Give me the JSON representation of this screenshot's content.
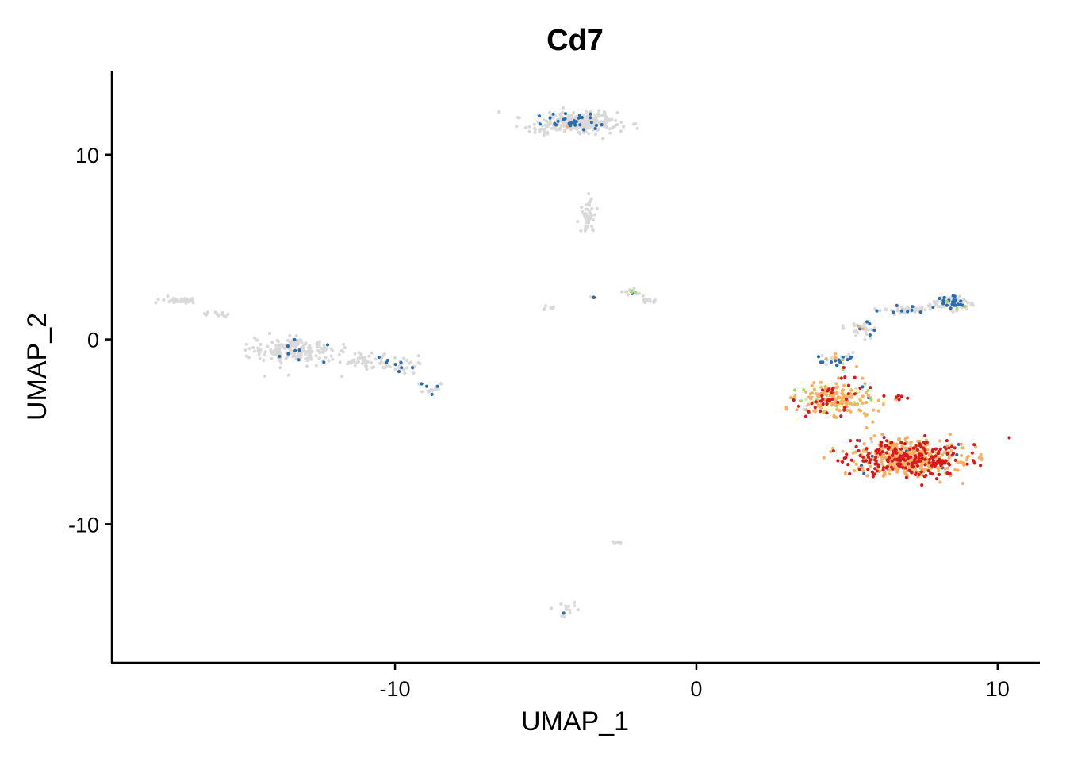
{
  "chart_data": {
    "type": "scatter",
    "title": "Cd7",
    "xlabel": "UMAP_1",
    "ylabel": "UMAP_2",
    "xlim": [
      -19.4,
      11.4
    ],
    "ylim": [
      -17.5,
      14.5
    ],
    "xticks": [
      -10,
      0,
      10
    ],
    "yticks": [
      -10,
      0,
      10
    ],
    "xtick_labels": [
      "-10",
      "0",
      "10"
    ],
    "ytick_labels": [
      "-10",
      "0",
      "10"
    ],
    "grid": false,
    "legend": "none",
    "point_colors": {
      "zero": "#d9d9d9",
      "low": "#2b6cb0",
      "mid_low": "#a6d96a",
      "mid": "#ffffbf",
      "mid_high": "#fdae61",
      "high": "#d7191c"
    },
    "clusters": [
      {
        "center": [
          -17.1,
          2.1
        ],
        "spread": [
          0.5,
          0.15
        ],
        "n": 40,
        "mix": {
          "zero": 1
        }
      },
      {
        "center": [
          -15.8,
          1.4
        ],
        "spread": [
          0.5,
          0.2
        ],
        "n": 12,
        "mix": {
          "zero": 1
        }
      },
      {
        "center": [
          -13.3,
          -0.6
        ],
        "spread": [
          1.2,
          0.6
        ],
        "n": 200,
        "mix": {
          "zero": 0.97,
          "low": 0.03
        }
      },
      {
        "center": [
          -11.0,
          -1.2
        ],
        "spread": [
          1.0,
          0.4
        ],
        "n": 60,
        "mix": {
          "zero": 0.95,
          "low": 0.05
        }
      },
      {
        "center": [
          -9.6,
          -1.5
        ],
        "spread": [
          0.5,
          0.4
        ],
        "n": 25,
        "mix": {
          "zero": 0.8,
          "low": 0.2
        }
      },
      {
        "center": [
          -8.8,
          -2.7
        ],
        "spread": [
          0.4,
          0.25
        ],
        "n": 18,
        "mix": {
          "zero": 0.75,
          "low": 0.25
        }
      },
      {
        "center": [
          -4.0,
          11.7
        ],
        "spread": [
          1.2,
          0.5
        ],
        "n": 320,
        "mix": {
          "zero": 0.9,
          "low": 0.09,
          "mid_high": 0.01
        }
      },
      {
        "center": [
          -3.6,
          6.8
        ],
        "spread": [
          0.25,
          0.8
        ],
        "n": 45,
        "mix": {
          "zero": 1
        }
      },
      {
        "center": [
          -3.4,
          2.3
        ],
        "spread": [
          0.12,
          0.12
        ],
        "n": 5,
        "mix": {
          "zero": 0.4,
          "low": 0.6
        }
      },
      {
        "center": [
          -2.1,
          2.6
        ],
        "spread": [
          0.35,
          0.3
        ],
        "n": 15,
        "mix": {
          "zero": 0.8,
          "low": 0.1,
          "mid_low": 0.1
        }
      },
      {
        "center": [
          -1.5,
          2.1
        ],
        "spread": [
          0.25,
          0.12
        ],
        "n": 18,
        "mix": {
          "zero": 0.95,
          "low": 0.05
        }
      },
      {
        "center": [
          -4.8,
          1.7
        ],
        "spread": [
          0.25,
          0.1
        ],
        "n": 8,
        "mix": {
          "zero": 1
        }
      },
      {
        "center": [
          -2.6,
          -11.0
        ],
        "spread": [
          0.15,
          0.08
        ],
        "n": 5,
        "mix": {
          "zero": 1
        }
      },
      {
        "center": [
          -4.3,
          -14.6
        ],
        "spread": [
          0.3,
          0.35
        ],
        "n": 14,
        "mix": {
          "zero": 0.9,
          "low": 0.1
        }
      },
      {
        "center": [
          8.5,
          2.0
        ],
        "spread": [
          0.6,
          0.35
        ],
        "n": 120,
        "mix": {
          "zero": 0.78,
          "low": 0.2,
          "mid_low": 0.02
        }
      },
      {
        "center": [
          7.0,
          1.6
        ],
        "spread": [
          0.9,
          0.2
        ],
        "n": 50,
        "mix": {
          "zero": 0.8,
          "low": 0.2
        }
      },
      {
        "center": [
          5.5,
          0.5
        ],
        "spread": [
          0.5,
          0.5
        ],
        "n": 30,
        "mix": {
          "zero": 0.75,
          "low": 0.2,
          "mid_high": 0.05
        }
      },
      {
        "center": [
          4.7,
          -1.1
        ],
        "spread": [
          0.5,
          0.3
        ],
        "n": 35,
        "mix": {
          "zero": 0.4,
          "low": 0.4,
          "mid_low": 0.1,
          "mid_high": 0.1
        }
      },
      {
        "center": [
          4.6,
          -3.2
        ],
        "spread": [
          1.1,
          0.8
        ],
        "n": 280,
        "mix": {
          "mid_high": 0.52,
          "mid": 0.18,
          "mid_low": 0.1,
          "high": 0.12,
          "zero": 0.06,
          "low": 0.02
        }
      },
      {
        "center": [
          6.7,
          -3.2
        ],
        "spread": [
          0.15,
          0.15
        ],
        "n": 12,
        "mix": {
          "high": 0.5,
          "mid_high": 0.5
        }
      },
      {
        "center": [
          7.0,
          -6.4
        ],
        "spread": [
          1.7,
          0.9
        ],
        "n": 620,
        "mix": {
          "mid_high": 0.62,
          "high": 0.34,
          "zero": 0.02,
          "low": 0.02
        }
      }
    ]
  }
}
